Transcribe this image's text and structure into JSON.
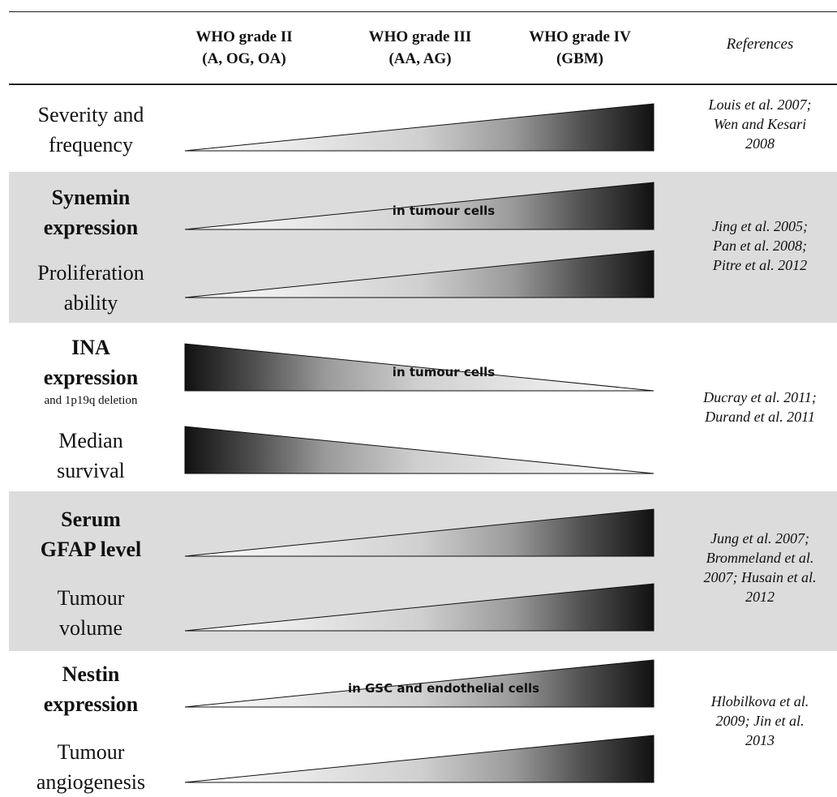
{
  "header": {
    "columns": [
      "WHO grade II\n(A, OG, OA)",
      "WHO grade III\n(AA, AG)",
      "WHO grade IV\n(GBM)"
    ],
    "references_label": "References"
  },
  "groups": [
    {
      "shaded": false,
      "rows": [
        {
          "label": "Severity and\nfrequency",
          "bold": false,
          "direction": "increasing",
          "wedge_label": ""
        }
      ],
      "references": "Louis et al. 2007;\nWen and Kesari\n2008"
    },
    {
      "shaded": true,
      "rows": [
        {
          "label": "Synemin\nexpression",
          "bold": true,
          "direction": "increasing",
          "wedge_label": "in tumour  cells"
        },
        {
          "label": "Proliferation\nability",
          "bold": false,
          "direction": "increasing",
          "wedge_label": ""
        }
      ],
      "references": "Jing et al. 2005;\nPan et al. 2008;\nPitre et al. 2012"
    },
    {
      "shaded": false,
      "rows": [
        {
          "label": "INA\nexpression",
          "sublabel": "and 1p19q deletion",
          "bold": true,
          "direction": "decreasing",
          "wedge_label": "in tumour  cells"
        },
        {
          "label": "Median\nsurvival",
          "bold": false,
          "direction": "decreasing",
          "wedge_label": ""
        }
      ],
      "references": "Ducray et al. 2011;\nDurand et al. 2011"
    },
    {
      "shaded": true,
      "rows": [
        {
          "label": "Serum\nGFAP level",
          "bold": true,
          "direction": "increasing",
          "wedge_label": ""
        },
        {
          "label": "Tumour\nvolume",
          "bold": false,
          "direction": "increasing",
          "wedge_label": ""
        }
      ],
      "references": "Jung et al. 2007;\nBrommeland et al.\n2007; Husain et al.\n2012"
    },
    {
      "shaded": false,
      "rows": [
        {
          "label": "Nestin\nexpression",
          "bold": true,
          "direction": "increasing",
          "wedge_label": "in GSC and endothelial cells"
        },
        {
          "label": "Tumour\nangiogenesis",
          "bold": false,
          "direction": "increasing",
          "wedge_label": ""
        }
      ],
      "references": "Hlobilkova et al.\n2009; Jin et al.\n2013"
    }
  ]
}
